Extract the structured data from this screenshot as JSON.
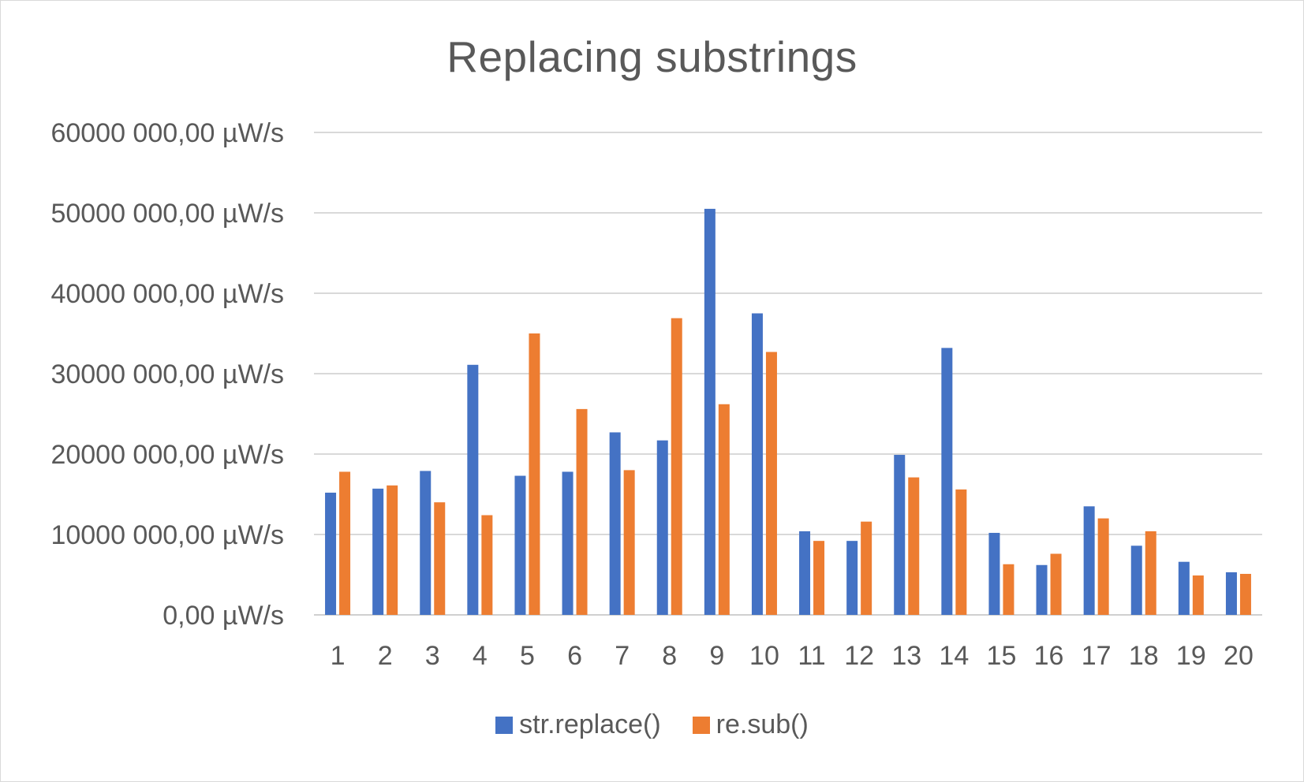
{
  "chart_data": {
    "type": "bar",
    "title": "Replacing substrings",
    "xlabel": "",
    "ylabel": "",
    "categories": [
      "1",
      "2",
      "3",
      "4",
      "5",
      "6",
      "7",
      "8",
      "9",
      "10",
      "11",
      "12",
      "13",
      "14",
      "15",
      "16",
      "17",
      "18",
      "19",
      "20"
    ],
    "ylim": [
      0,
      60000000
    ],
    "yticks": [
      0,
      10000000,
      20000000,
      30000000,
      40000000,
      50000000,
      60000000
    ],
    "ytick_labels": [
      "0,00 µW/s",
      "10000 000,00 µW/s",
      "20000 000,00 µW/s",
      "30000 000,00 µW/s",
      "40000 000,00 µW/s",
      "50000 000,00 µW/s",
      "60000 000,00 µW/s"
    ],
    "grid": true,
    "legend_position": "bottom",
    "series": [
      {
        "name": "str.replace()",
        "color": "#4472c4",
        "values": [
          15200000,
          15700000,
          17900000,
          31100000,
          17300000,
          17800000,
          22700000,
          21700000,
          50500000,
          37500000,
          10400000,
          9200000,
          19900000,
          33200000,
          10200000,
          6200000,
          13500000,
          8600000,
          6600000,
          5300000
        ]
      },
      {
        "name": "re.sub()",
        "color": "#ed7d31",
        "values": [
          17800000,
          16100000,
          14000000,
          12400000,
          35000000,
          25600000,
          18000000,
          36900000,
          26200000,
          32700000,
          9200000,
          11600000,
          17100000,
          15600000,
          6300000,
          7600000,
          12000000,
          10400000,
          4900000,
          5100000
        ]
      }
    ]
  }
}
